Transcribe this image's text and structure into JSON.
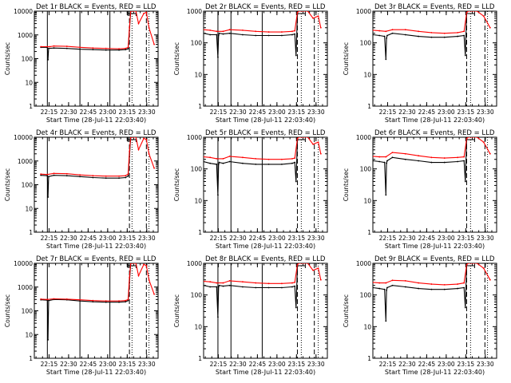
{
  "chart_data": [
    {
      "type": "line",
      "title": "Det 1r BLACK = Events, RED = LLD",
      "xlabel": "Start Time (28-Jul-11 22:03:40)",
      "ylabel": "Counts/sec",
      "yscale": "log",
      "ylim": [
        1,
        10000
      ],
      "xticks": [
        "22:15",
        "22:30",
        "22:45",
        "23:00",
        "23:15",
        "23:30"
      ],
      "yticks": [
        "1",
        "10",
        "100",
        "1000",
        "10000"
      ],
      "series": [
        {
          "color": "#000000",
          "x": [
            5,
            10,
            10.5,
            11,
            15,
            25,
            35,
            45,
            55,
            65,
            70,
            72,
            73,
            74
          ],
          "y": [
            300,
            300,
            90,
            270,
            280,
            270,
            250,
            240,
            230,
            230,
            240,
            260,
            1500,
            10000
          ]
        },
        {
          "color": "#ff0000",
          "x": [
            5,
            10,
            12,
            15,
            25,
            35,
            45,
            55,
            65,
            70,
            72,
            73,
            74,
            78,
            80,
            84,
            86,
            88,
            92
          ],
          "y": [
            320,
            320,
            320,
            340,
            330,
            300,
            280,
            270,
            260,
            270,
            300,
            2000,
            10000,
            10000,
            3000,
            8000,
            9000,
            2000,
            400
          ]
        }
      ],
      "vlines_solid": [
        10,
        35,
        58
      ],
      "vlines_dashed": [
        73,
        86
      ],
      "vlines_dotted": [
        75,
        88
      ]
    },
    {
      "type": "line",
      "title": "Det 2r BLACK = Events, RED = LLD",
      "xlabel": "Start Time (28-Jul-11 22:03:40)",
      "ylabel": "Counts/sec",
      "yscale": "log",
      "ylim": [
        1,
        1000
      ],
      "xticks": [
        "22:15",
        "22:30",
        "22:45",
        "23:00",
        "23:15",
        "23:30"
      ],
      "yticks": [
        "1",
        "10",
        "100",
        "1000"
      ],
      "series": [
        {
          "color": "#000000",
          "x": [
            0,
            5,
            10,
            11,
            11.5,
            12,
            15,
            20,
            30,
            40,
            50,
            60,
            68,
            70,
            71,
            72
          ],
          "y": [
            200,
            180,
            180,
            35,
            170,
            200,
            190,
            200,
            180,
            170,
            170,
            170,
            180,
            190,
            40,
            800
          ]
        },
        {
          "color": "#ff0000",
          "x": [
            0,
            5,
            10,
            15,
            20,
            30,
            40,
            50,
            60,
            68,
            70,
            72,
            73,
            80,
            84,
            88,
            90
          ],
          "y": [
            260,
            250,
            230,
            230,
            260,
            250,
            230,
            220,
            220,
            230,
            240,
            900,
            1000,
            1000,
            600,
            700,
            300
          ]
        }
      ],
      "vlines_solid": [
        11,
        21,
        45
      ],
      "vlines_dashed": [
        72,
        85
      ],
      "vlines_dotted": [
        75,
        88
      ]
    },
    {
      "type": "line",
      "title": "Det 3r BLACK = Events, RED = LLD",
      "xlabel": "Start Time (28-Jul-11 22:03:40)",
      "ylabel": "Counts/sec",
      "yscale": "log",
      "ylim": [
        1,
        1000
      ],
      "xticks": [
        "22:15",
        "22:30",
        "22:45",
        "23:00",
        "23:15",
        "23:30"
      ],
      "yticks": [
        "1",
        "10",
        "100",
        "1000"
      ],
      "series": [
        {
          "color": "#000000",
          "x": [
            0,
            5,
            9,
            10,
            10.5,
            11,
            15,
            25,
            35,
            45,
            55,
            65,
            70,
            71,
            72
          ],
          "y": [
            180,
            170,
            160,
            30,
            140,
            170,
            200,
            180,
            160,
            150,
            150,
            160,
            170,
            40,
            900
          ]
        },
        {
          "color": "#ff0000",
          "x": [
            0,
            5,
            10,
            15,
            25,
            35,
            45,
            55,
            65,
            70,
            72,
            73,
            80,
            85,
            90
          ],
          "y": [
            250,
            240,
            230,
            260,
            260,
            230,
            210,
            200,
            210,
            230,
            900,
            1000,
            1000,
            700,
            300
          ]
        }
      ],
      "vlines_solid": [],
      "vlines_dashed": [
        72,
        86
      ],
      "vlines_dotted": [
        75,
        88
      ]
    },
    {
      "type": "line",
      "title": "Det 4r BLACK = Events, RED = LLD",
      "xlabel": "Start Time (28-Jul-11 22:03:40)",
      "ylabel": "Counts/sec",
      "yscale": "log",
      "ylim": [
        1,
        10000
      ],
      "xticks": [
        "22:15",
        "22:30",
        "22:45",
        "23:00",
        "23:15",
        "23:30"
      ],
      "yticks": [
        "1",
        "10",
        "100",
        "1000",
        "10000"
      ],
      "series": [
        {
          "color": "#000000",
          "x": [
            5,
            10,
            10.5,
            11,
            15,
            25,
            35,
            45,
            55,
            65,
            70,
            72,
            73,
            74
          ],
          "y": [
            250,
            240,
            30,
            220,
            250,
            240,
            220,
            200,
            190,
            190,
            200,
            230,
            1500,
            10000
          ]
        },
        {
          "color": "#ff0000",
          "x": [
            5,
            10,
            15,
            25,
            35,
            45,
            55,
            65,
            70,
            72,
            73,
            74,
            78,
            80,
            84,
            86,
            88,
            92
          ],
          "y": [
            280,
            270,
            300,
            290,
            260,
            240,
            230,
            230,
            240,
            280,
            2500,
            10000,
            10000,
            3000,
            9000,
            8000,
            2000,
            500
          ]
        }
      ],
      "vlines_solid": [
        10
      ],
      "vlines_dashed": [
        73,
        86
      ],
      "vlines_dotted": [
        75,
        88
      ]
    },
    {
      "type": "line",
      "title": "Det 5r BLACK = Events, RED = LLD",
      "xlabel": "Start Time (28-Jul-11 22:03:40)",
      "ylabel": "Counts/sec",
      "yscale": "log",
      "ylim": [
        1,
        1000
      ],
      "xticks": [
        "22:15",
        "22:30",
        "22:45",
        "23:00",
        "23:15",
        "23:30"
      ],
      "yticks": [
        "1",
        "10",
        "100",
        "1000"
      ],
      "series": [
        {
          "color": "#000000",
          "x": [
            0,
            5,
            10,
            11,
            11.5,
            12,
            15,
            20,
            30,
            40,
            50,
            60,
            68,
            70,
            71,
            72
          ],
          "y": [
            170,
            150,
            140,
            15,
            140,
            160,
            150,
            170,
            150,
            140,
            140,
            140,
            150,
            160,
            40,
            800
          ]
        },
        {
          "color": "#ff0000",
          "x": [
            0,
            5,
            10,
            15,
            20,
            30,
            40,
            50,
            60,
            68,
            70,
            72,
            73,
            80,
            84,
            88,
            90
          ],
          "y": [
            240,
            230,
            210,
            210,
            250,
            230,
            210,
            200,
            200,
            210,
            220,
            900,
            1000,
            1000,
            600,
            700,
            300
          ]
        }
      ],
      "vlines_solid": [
        11,
        21,
        45
      ],
      "vlines_dashed": [
        72,
        85
      ],
      "vlines_dotted": [
        75,
        88
      ]
    },
    {
      "type": "line",
      "title": "Det 6r BLACK = Events, RED = LLD",
      "xlabel": "Start Time (28-Jul-11 22:03:40)",
      "ylabel": "Counts/sec",
      "yscale": "log",
      "ylim": [
        1,
        1000
      ],
      "xticks": [
        "22:15",
        "22:30",
        "22:45",
        "23:00",
        "23:15",
        "23:30"
      ],
      "yticks": [
        "1",
        "10",
        "100",
        "1000"
      ],
      "series": [
        {
          "color": "#000000",
          "x": [
            0,
            5,
            9,
            10,
            10.5,
            11,
            15,
            25,
            35,
            45,
            55,
            65,
            70,
            71,
            72
          ],
          "y": [
            180,
            170,
            160,
            15,
            150,
            180,
            230,
            200,
            180,
            160,
            160,
            170,
            180,
            40,
            900
          ]
        },
        {
          "color": "#ff0000",
          "x": [
            0,
            5,
            10,
            15,
            25,
            35,
            45,
            55,
            65,
            70,
            72,
            73,
            80,
            85,
            90
          ],
          "y": [
            250,
            240,
            240,
            330,
            300,
            260,
            230,
            220,
            230,
            240,
            900,
            1000,
            1000,
            700,
            300
          ]
        }
      ],
      "vlines_solid": [],
      "vlines_dashed": [
        72,
        86
      ],
      "vlines_dotted": [
        75,
        88
      ]
    },
    {
      "type": "line",
      "title": "Det 7r BLACK = Events, RED = LLD",
      "xlabel": "Start Time (28-Jul-11 22:03:40)",
      "ylabel": "Counts/sec",
      "yscale": "log",
      "ylim": [
        1,
        10000
      ],
      "xticks": [
        "22:15",
        "22:30",
        "22:45",
        "23:00",
        "23:15",
        "23:30"
      ],
      "yticks": [
        "1",
        "10",
        "100",
        "1000",
        "10000"
      ],
      "series": [
        {
          "color": "#000000",
          "x": [
            5,
            10,
            10.5,
            11,
            15,
            25,
            35,
            45,
            55,
            65,
            70,
            72,
            73,
            74
          ],
          "y": [
            290,
            280,
            6,
            270,
            300,
            290,
            260,
            240,
            230,
            230,
            240,
            270,
            1500,
            10000
          ]
        },
        {
          "color": "#ff0000",
          "x": [
            5,
            10,
            15,
            25,
            35,
            45,
            55,
            65,
            70,
            72,
            73,
            74,
            78,
            80,
            84,
            86,
            88,
            92
          ],
          "y": [
            310,
            300,
            320,
            310,
            290,
            270,
            260,
            260,
            270,
            300,
            2500,
            10000,
            10000,
            3000,
            9000,
            8000,
            2000,
            500
          ]
        }
      ],
      "vlines_solid": [
        10,
        35,
        58
      ],
      "vlines_dashed": [
        73,
        86
      ],
      "vlines_dotted": [
        75,
        88
      ]
    },
    {
      "type": "line",
      "title": "Det 8r BLACK = Events, RED = LLD",
      "xlabel": "Start Time (28-Jul-11 22:03:40)",
      "ylabel": "Counts/sec",
      "yscale": "log",
      "ylim": [
        1,
        1000
      ],
      "xticks": [
        "22:15",
        "22:30",
        "22:45",
        "23:00",
        "23:15",
        "23:30"
      ],
      "yticks": [
        "1",
        "10",
        "100",
        "1000"
      ],
      "series": [
        {
          "color": "#000000",
          "x": [
            0,
            5,
            10,
            11,
            11.5,
            12,
            15,
            20,
            30,
            40,
            50,
            60,
            68,
            70,
            71,
            72
          ],
          "y": [
            200,
            180,
            180,
            20,
            180,
            200,
            190,
            200,
            180,
            170,
            170,
            170,
            180,
            190,
            40,
            800
          ]
        },
        {
          "color": "#ff0000",
          "x": [
            0,
            5,
            10,
            15,
            20,
            30,
            40,
            50,
            60,
            68,
            70,
            72,
            73,
            80,
            84,
            88,
            90
          ],
          "y": [
            270,
            260,
            240,
            240,
            280,
            260,
            240,
            230,
            230,
            240,
            250,
            900,
            1000,
            1000,
            600,
            700,
            300
          ]
        }
      ],
      "vlines_solid": [
        11,
        21,
        45
      ],
      "vlines_dashed": [
        72,
        85
      ],
      "vlines_dotted": [
        75,
        88
      ]
    },
    {
      "type": "line",
      "title": "Det 9r BLACK = Events, RED = LLD",
      "xlabel": "Start Time (28-Jul-11 22:03:40)",
      "ylabel": "Counts/sec",
      "yscale": "log",
      "ylim": [
        1,
        1000
      ],
      "xticks": [
        "22:15",
        "22:30",
        "22:45",
        "23:00",
        "23:15",
        "23:30"
      ],
      "yticks": [
        "1",
        "10",
        "100",
        "1000"
      ],
      "series": [
        {
          "color": "#000000",
          "x": [
            0,
            5,
            9,
            10,
            10.5,
            11,
            15,
            25,
            35,
            45,
            55,
            65,
            70,
            71,
            72
          ],
          "y": [
            170,
            160,
            150,
            15,
            140,
            170,
            200,
            180,
            160,
            150,
            150,
            160,
            170,
            40,
            900
          ]
        },
        {
          "color": "#ff0000",
          "x": [
            0,
            5,
            10,
            15,
            25,
            35,
            45,
            55,
            65,
            70,
            72,
            73,
            80,
            85,
            90
          ],
          "y": [
            250,
            240,
            240,
            290,
            280,
            240,
            220,
            210,
            220,
            240,
            900,
            1000,
            1000,
            700,
            300
          ]
        }
      ],
      "vlines_solid": [],
      "vlines_dashed": [
        72,
        86
      ],
      "vlines_dotted": [
        75,
        88
      ]
    }
  ]
}
